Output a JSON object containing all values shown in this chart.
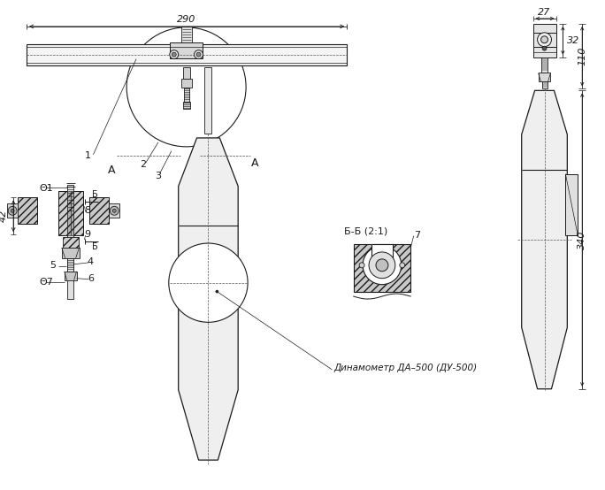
{
  "bg_color": "#ffffff",
  "line_color": "#1a1a1a",
  "dim_290": "290",
  "dim_42": "42",
  "dim_27": "27",
  "dim_32": "32",
  "dim_110": "110",
  "dim_340": "340",
  "label_1": "1",
  "label_2": "2",
  "label_3": "3",
  "label_4": "4",
  "label_5": "5",
  "label_6": "6",
  "label_7": "7",
  "label_8": "8",
  "label_9": "9",
  "label_A_left": "A",
  "label_A_right": "A",
  "label_phi1": "Θ1",
  "label_phi7": "Θ7",
  "label_B_upper": "Б",
  "label_B_lower": "Б",
  "label_BB": "Б-Б (2:1)",
  "dynamo_label": "Динамометр ДА–500 (ДУ-500)",
  "font_dim": 8,
  "font_label": 8,
  "font_dynamo": 7.5
}
